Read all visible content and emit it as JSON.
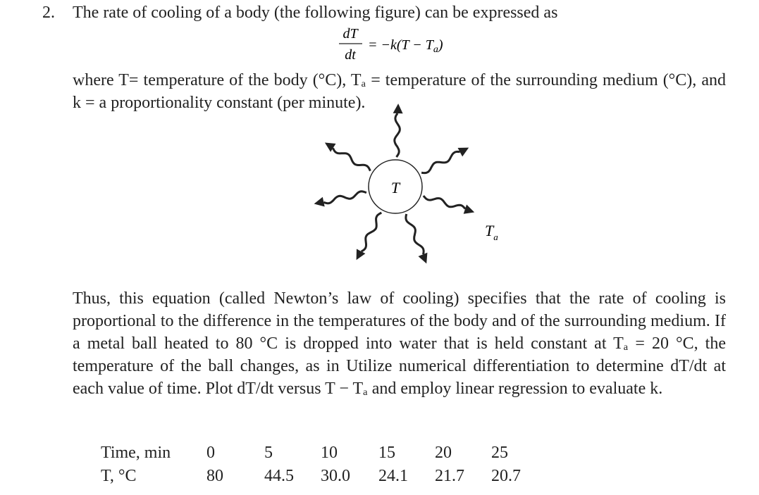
{
  "problem": {
    "number": "2.",
    "intro": "The rate of cooling of a body (the following figure) can be expressed as",
    "equation": {
      "numerator": "dT",
      "denominator": "dt",
      "rhs": "= −k(T − T",
      "rhs_sub": "a",
      "rhs_close": ")"
    },
    "definition": "where T= temperature of the body (°C), Tₐ = temperature of the surrounding medium (°C), and k = a proportionality constant (per minute).",
    "figure": {
      "center_label": "T",
      "ambient_label": "T",
      "ambient_sub": "a"
    },
    "paragraph": "Thus, this equation (called Newton’s law of cooling) specifies that the rate of cooling is proportional to the difference in the temperatures of the body and of the surrounding medium. If a metal ball heated to 80 °C is dropped into water that is held constant at Tₐ = 20 °C, the temperature of the ball changes, as in Utilize numerical differentiation to determine dT/dt at each value of time. Plot dT/dt versus T − Tₐ and employ linear regression to evaluate k.",
    "table": {
      "rows": [
        [
          "Time, min",
          "0",
          "5",
          "10",
          "15",
          "20",
          "25"
        ],
        [
          "T, °C",
          "80",
          "44.5",
          "30.0",
          "24.1",
          "21.7",
          "20.7"
        ]
      ]
    }
  }
}
